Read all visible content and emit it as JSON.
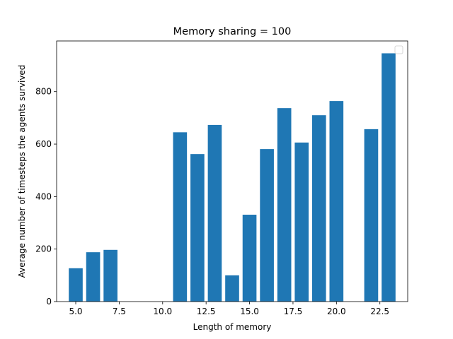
{
  "chart_data": {
    "type": "bar",
    "title": "Memory sharing = 100",
    "xlabel": "Length of memory",
    "ylabel": "Average number of timesteps the agents survived",
    "x": [
      5,
      6,
      7,
      11,
      12,
      13,
      14,
      15,
      16,
      17,
      18,
      19,
      20,
      22,
      23
    ],
    "values": [
      127,
      188,
      197,
      645,
      562,
      673,
      100,
      331,
      581,
      737,
      606,
      710,
      764,
      657,
      946
    ],
    "xlim": [
      3.9,
      24.1
    ],
    "ylim": [
      0,
      993
    ],
    "xticks": [
      5.0,
      7.5,
      10.0,
      12.5,
      15.0,
      17.5,
      20.0,
      22.5
    ],
    "xtick_labels": [
      "5.0",
      "7.5",
      "10.0",
      "12.5",
      "15.0",
      "17.5",
      "20.0",
      "22.5"
    ],
    "yticks": [
      0,
      200,
      400,
      600,
      800
    ],
    "ytick_labels": [
      "0",
      "200",
      "400",
      "600",
      "800"
    ],
    "bar_color": "#1f77b4",
    "grid": false,
    "legend": "top-right (empty)"
  }
}
